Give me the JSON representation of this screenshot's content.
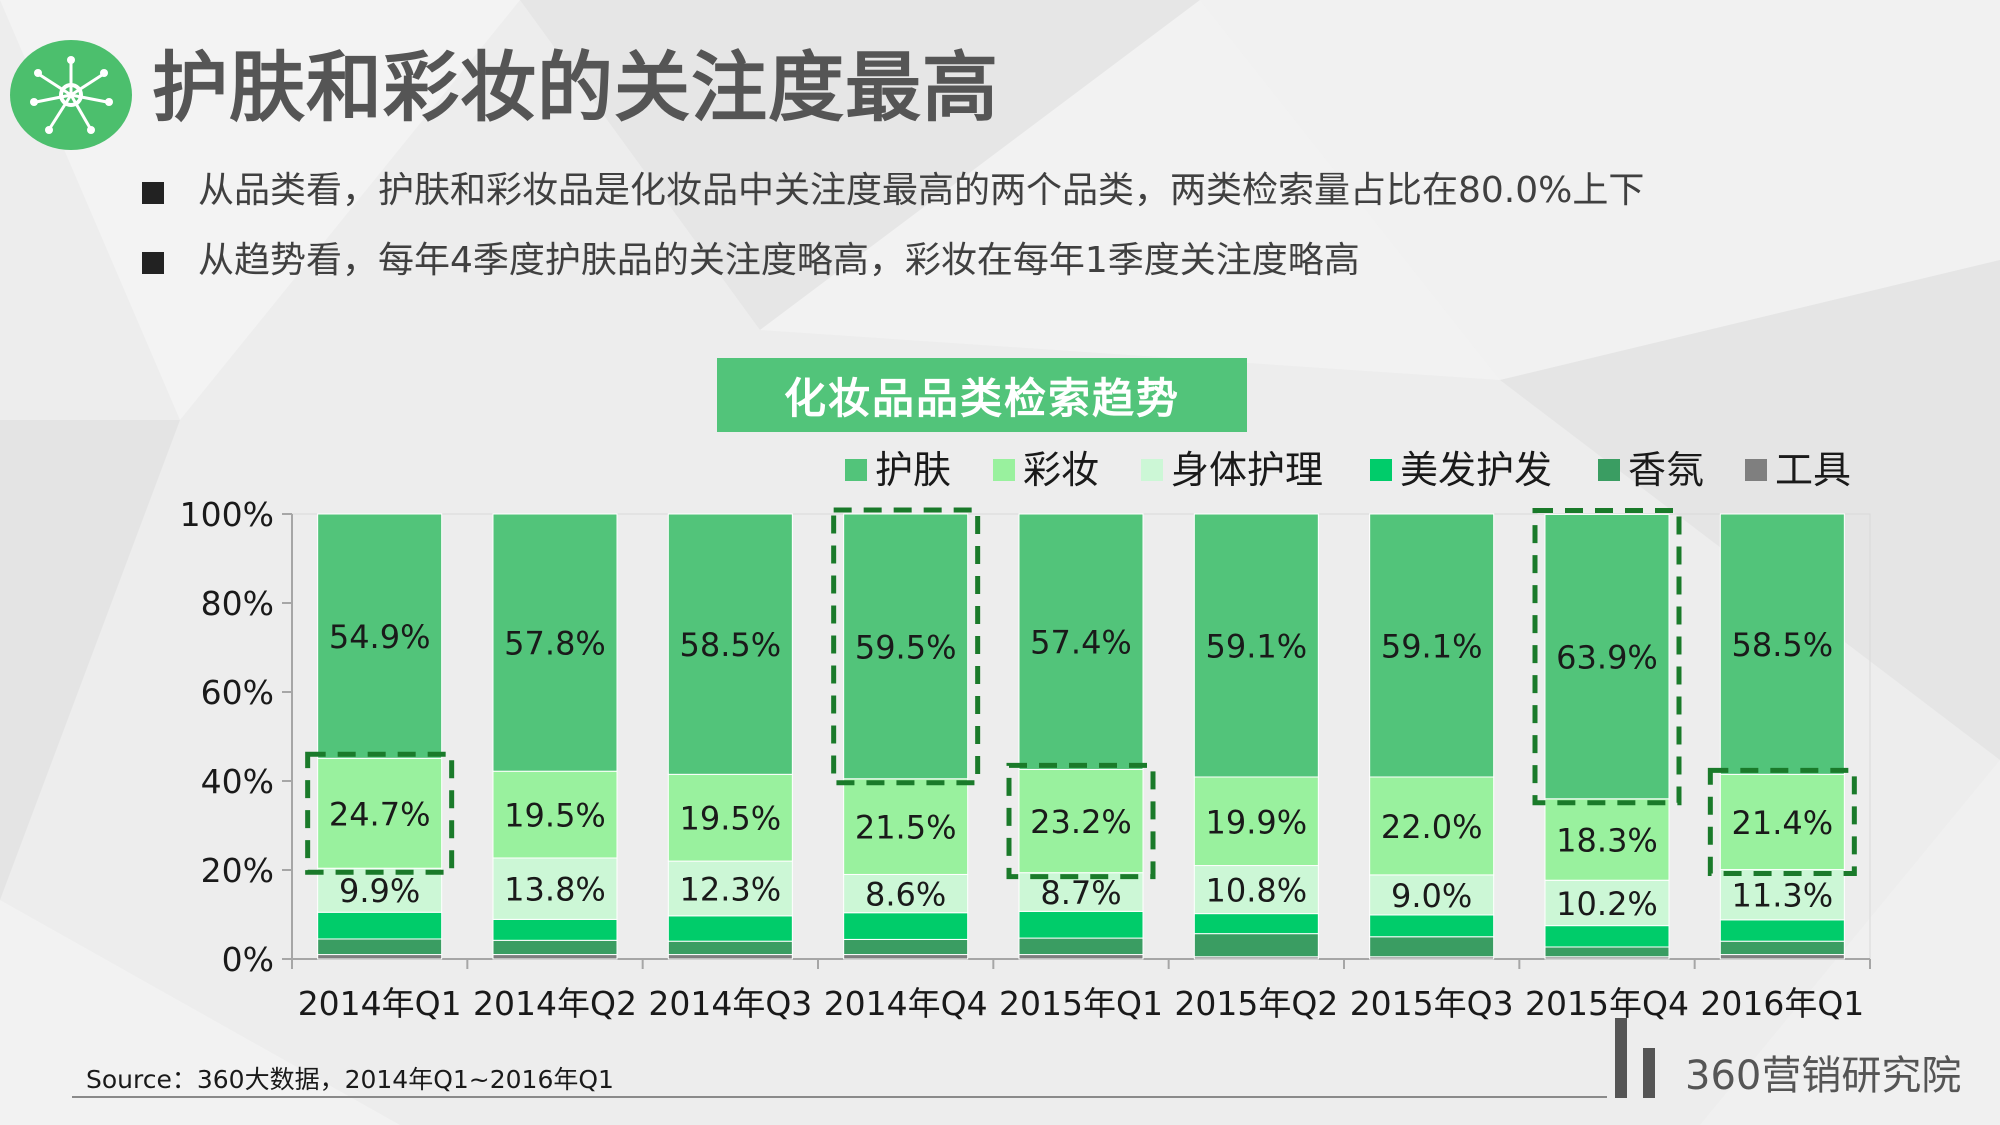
{
  "page": {
    "title": "护肤和彩妆的关注度最高",
    "bullets": [
      "从品类看，护肤和彩妆品是化妆品中关注度最高的两个品类，两类检索量占比在80.0%上下",
      "从趋势看，每年4季度护肤品的关注度略高，彩妆在每年1季度关注度略高"
    ],
    "source": "Source：360大数据，2014年Q1~2016年Q1",
    "brand": "360营销研究院",
    "icons": {
      "logo": "network-icon",
      "bullet": "square-bullet-icon"
    }
  },
  "chart_data": {
    "type": "bar",
    "stacked": true,
    "percent": true,
    "title": "化妆品品类检索趋势",
    "categories": [
      "2014年Q1",
      "2014年Q2",
      "2014年Q3",
      "2014年Q4",
      "2015年Q1",
      "2015年Q2",
      "2015年Q3",
      "2015年Q4",
      "2016年Q1"
    ],
    "ylim": [
      0,
      100
    ],
    "yticks": [
      "0%",
      "20%",
      "40%",
      "60%",
      "80%",
      "100%"
    ],
    "series": [
      {
        "name": "工具",
        "color": "#7f7f7f",
        "values": [
          1.0,
          1.0,
          1.0,
          1.0,
          1.0,
          0.5,
          0.5,
          0.5,
          1.0
        ]
      },
      {
        "name": "香氛",
        "color": "#3a9d62",
        "values": [
          3.5,
          3.2,
          3.0,
          3.4,
          3.7,
          5.2,
          4.5,
          2.2,
          3.0
        ]
      },
      {
        "name": "美发护发",
        "color": "#00cc6a",
        "values": [
          6.0,
          4.7,
          5.7,
          6.0,
          6.0,
          4.5,
          4.9,
          4.8,
          4.8
        ]
      },
      {
        "name": "身体护理",
        "color": "#ccf7d6",
        "values": [
          9.9,
          13.8,
          12.3,
          8.6,
          8.7,
          10.8,
          9.0,
          10.2,
          11.3
        ],
        "labels": [
          "9.9%",
          "13.8%",
          "12.3%",
          "8.6%",
          "8.7%",
          "10.8%",
          "9.0%",
          "10.2%",
          "11.3%"
        ]
      },
      {
        "name": "彩妆",
        "color": "#99f19e",
        "values": [
          24.7,
          19.5,
          19.5,
          21.5,
          23.2,
          19.9,
          22.0,
          18.3,
          21.4
        ],
        "labels": [
          "24.7%",
          "19.5%",
          "19.5%",
          "21.5%",
          "23.2%",
          "19.9%",
          "22.0%",
          "18.3%",
          "21.4%"
        ]
      },
      {
        "name": "护肤",
        "color": "#52c47a",
        "values": [
          54.9,
          57.8,
          58.5,
          59.5,
          57.4,
          59.1,
          59.1,
          63.9,
          58.5
        ],
        "labels": [
          "54.9%",
          "57.8%",
          "58.5%",
          "59.5%",
          "57.4%",
          "59.1%",
          "59.1%",
          "63.9%",
          "58.5%"
        ]
      }
    ],
    "legend": [
      "护肤",
      "彩妆",
      "身体护理",
      "美发护发",
      "香氛",
      "工具"
    ],
    "legend_position": "top-right",
    "highlights": [
      {
        "category": "2014年Q1",
        "series": "彩妆"
      },
      {
        "category": "2014年Q4",
        "series": "护肤"
      },
      {
        "category": "2015年Q1",
        "series": "彩妆"
      },
      {
        "category": "2015年Q4",
        "series": "护肤"
      },
      {
        "category": "2016年Q1",
        "series": "彩妆"
      }
    ],
    "highlight_color": "#1a7a2a",
    "grid": false
  }
}
